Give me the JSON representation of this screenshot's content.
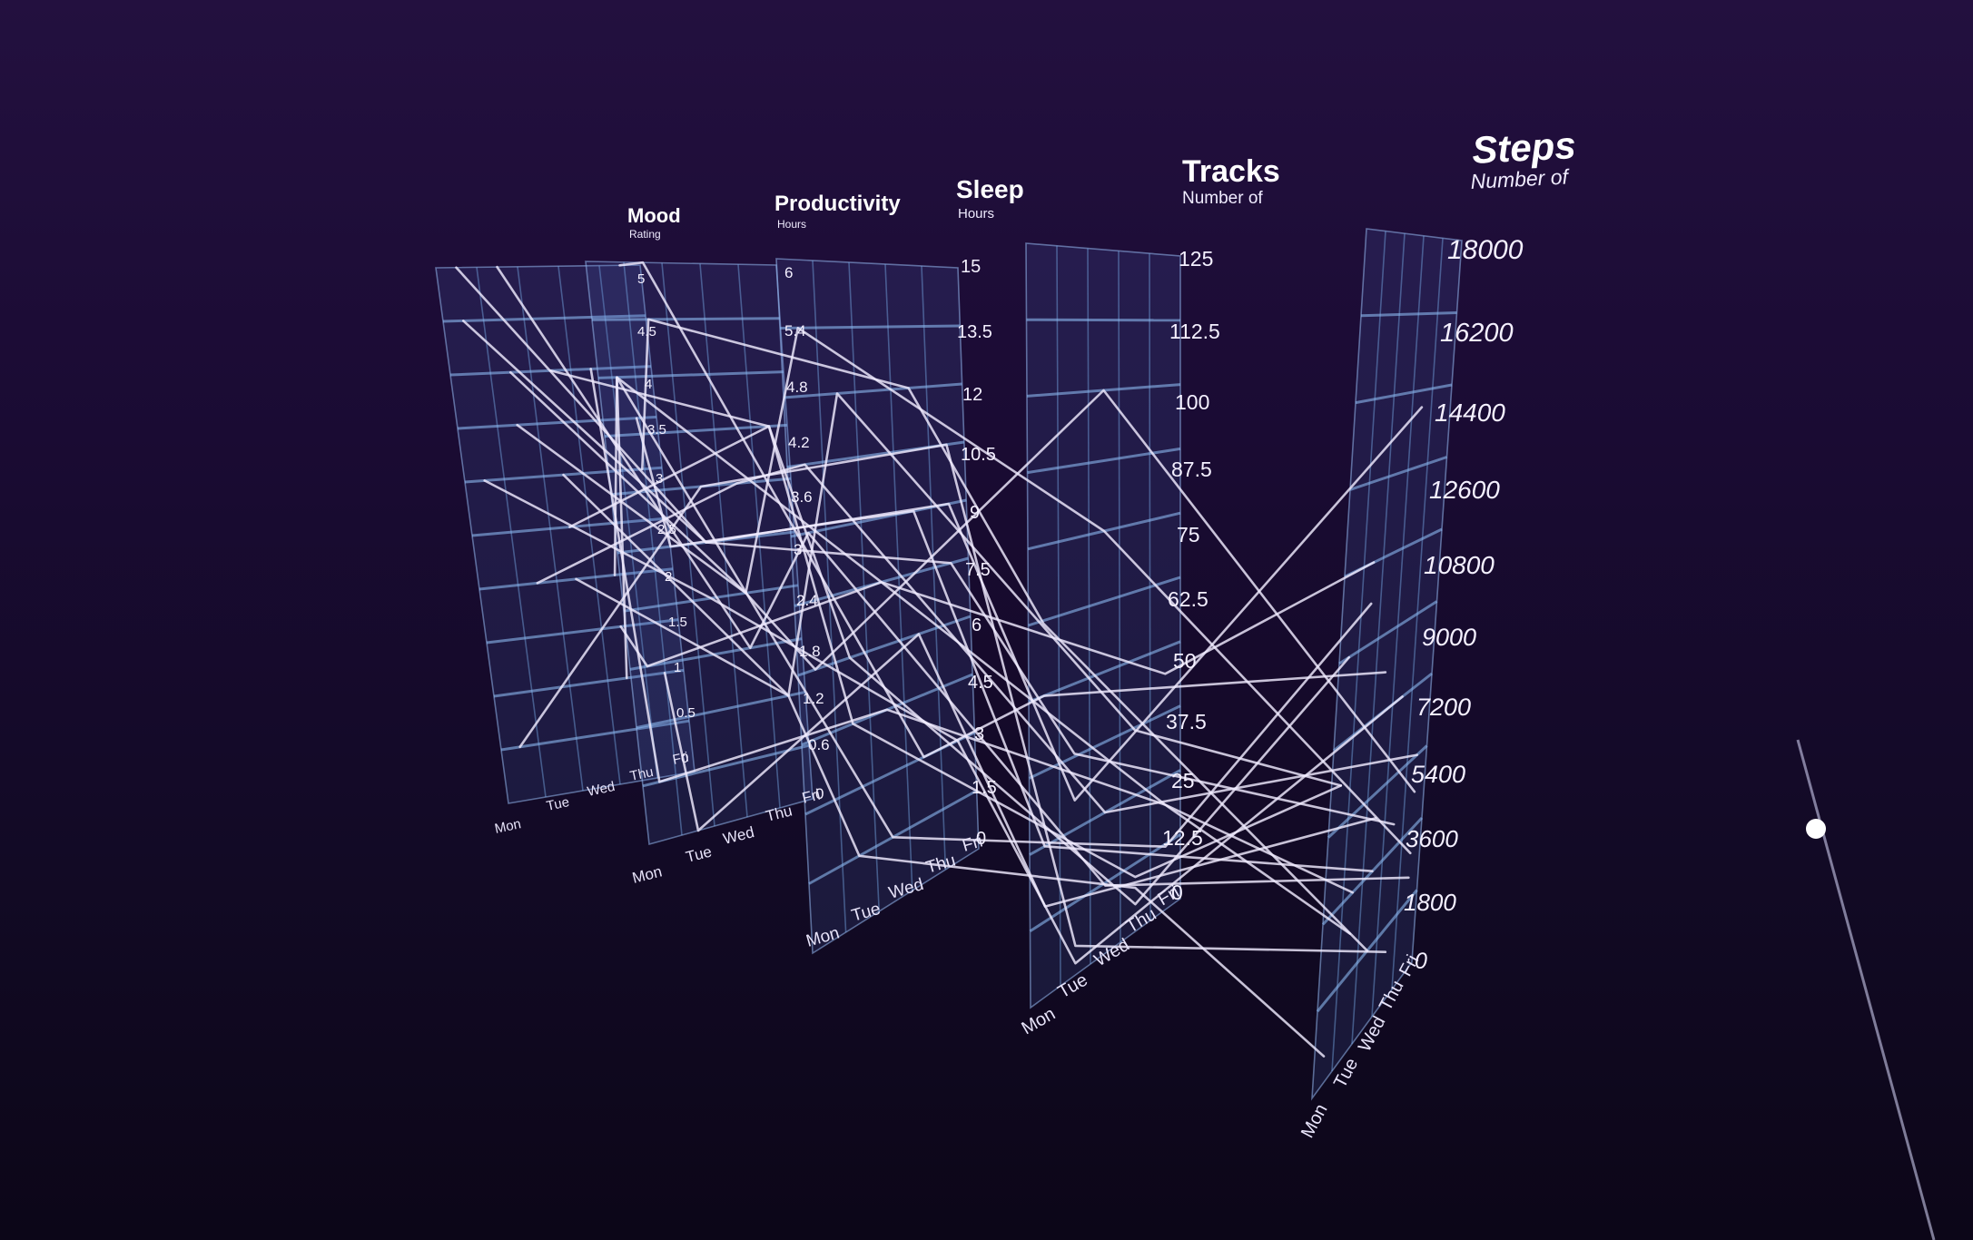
{
  "axes": [
    {
      "key": "mood",
      "title": "Mood",
      "subtitle": "Rating",
      "ticks": [
        "5",
        "4.5",
        "4",
        "3.5",
        "3",
        "2.5",
        "2",
        "1.5",
        "1",
        "0.5",
        "0"
      ],
      "days": [
        "Mon",
        "Tue",
        "Wed",
        "Thu",
        "Fri"
      ]
    },
    {
      "key": "productivity",
      "title": "Productivity",
      "subtitle": "Hours",
      "ticks": [
        "6",
        "5.4",
        "4.8",
        "4.2",
        "3.6",
        "3",
        "2.4",
        "1.8",
        "1.2",
        "0.6",
        "0"
      ],
      "days": [
        "Mon",
        "Tue",
        "Wed",
        "Thu",
        "Fri"
      ]
    },
    {
      "key": "sleep",
      "title": "Sleep",
      "subtitle": "Hours",
      "ticks": [
        "15",
        "13.5",
        "12",
        "10.5",
        "9",
        "7.5",
        "6",
        "4.5",
        "3",
        "1.5",
        "0"
      ],
      "days": [
        "Mon",
        "Tue",
        "Wed",
        "Thu",
        "Fri"
      ]
    },
    {
      "key": "tracks",
      "title": "Tracks",
      "subtitle": "Number of",
      "ticks": [
        "125",
        "112.5",
        "100",
        "87.5",
        "75",
        "62.5",
        "50",
        "37.5",
        "25",
        "12.5",
        "0"
      ],
      "days": [
        "Mon",
        "Tue",
        "Wed",
        "Thu",
        "Fri"
      ]
    },
    {
      "key": "steps",
      "title": "Steps",
      "subtitle": "Number of",
      "ticks": [
        "18000",
        "16200",
        "14400",
        "12600",
        "10800",
        "9000",
        "7200",
        "5400",
        "3600",
        "1800",
        "0"
      ],
      "days": [
        "Mon",
        "Tue",
        "Wed",
        "Thu",
        "Fri"
      ]
    }
  ],
  "records": [
    {
      "mood": 5,
      "productivity": 3.0,
      "sleep": 7.5,
      "tracks": 38,
      "steps": 4200
    },
    {
      "mood": 5,
      "productivity": 1.8,
      "sleep": 9.0,
      "tracks": 12,
      "steps": 2400
    },
    {
      "mood": 4,
      "productivity": 4.2,
      "sleep": 6.0,
      "tracks": 5,
      "steps": 9000
    },
    {
      "mood": 4,
      "productivity": 0.6,
      "sleep": 4.5,
      "tracks": 20,
      "steps": 3600
    },
    {
      "mood": 3,
      "productivity": 5.4,
      "sleep": 12.0,
      "tracks": 62,
      "steps": 1800
    },
    {
      "mood": 3,
      "productivity": 2.4,
      "sleep": 3.0,
      "tracks": 2,
      "steps": 7200
    },
    {
      "mood": 2,
      "productivity": 3.6,
      "sleep": 10.5,
      "tracks": 25,
      "steps": 5400
    },
    {
      "mood": 2,
      "productivity": 1.2,
      "sleep": 1.5,
      "tracks": 8,
      "steps": 600
    },
    {
      "mood": 1,
      "productivity": 4.8,
      "sleep": 7.5,
      "tracks": 45,
      "steps": 10800
    },
    {
      "mood": 1,
      "productivity": 0.0,
      "sleep": 6.0,
      "tracks": 15,
      "steps": 4800
    },
    {
      "mood": 4.5,
      "productivity": 3.0,
      "sleep": 9.0,
      "tracks": 30,
      "steps": 14000
    },
    {
      "mood": 3.5,
      "productivity": 2.4,
      "sleep": 13.5,
      "tracks": 75,
      "steps": 3000
    },
    {
      "mood": 2.5,
      "productivity": 4.2,
      "sleep": 4.5,
      "tracks": 10,
      "steps": 6300
    },
    {
      "mood": 1.5,
      "productivity": 1.8,
      "sleep": 7.5,
      "tracks": 20,
      "steps": 2700
    },
    {
      "mood": 5,
      "productivity": 6.0,
      "sleep": 3.0,
      "tracks": 50,
      "steps": 8100
    },
    {
      "mood": 0.5,
      "productivity": 3.6,
      "sleep": 10.5,
      "tracks": 5,
      "steps": 1200
    },
    {
      "mood": 4,
      "productivity": 2.4,
      "sleep": 6.0,
      "tracks": 100,
      "steps": 4500
    },
    {
      "mood": 3,
      "productivity": 1.2,
      "sleep": 12.0,
      "tracks": 37,
      "steps": 6300
    },
    {
      "mood": 2,
      "productivity": 4.8,
      "sleep": 1.5,
      "tracks": 12,
      "steps": 9900
    },
    {
      "mood": 3.5,
      "productivity": 3.0,
      "sleep": 9.0,
      "tracks": 25,
      "steps": 3600
    }
  ]
}
